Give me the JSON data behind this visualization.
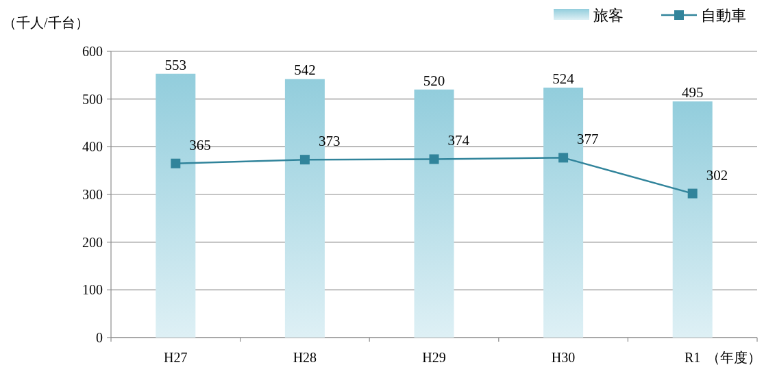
{
  "chart_data": {
    "type": "bar",
    "ylabel": "（千人/千台）",
    "xlabel": "（年度）",
    "categories": [
      "H27",
      "H28",
      "H29",
      "H30",
      "R1"
    ],
    "series": [
      {
        "name": "旅客",
        "color": "#92cddc",
        "values": [
          553,
          542,
          520,
          524,
          495
        ]
      },
      {
        "name": "自動車",
        "type": "line",
        "color": "#31849b",
        "values": [
          365,
          373,
          374,
          377,
          302
        ]
      }
    ],
    "ylim": [
      0,
      600
    ],
    "yticks": [
      0,
      100,
      200,
      300,
      400,
      500,
      600
    ],
    "grid": "y",
    "legend": "top right",
    "marker": "square",
    "data_labels": true
  }
}
